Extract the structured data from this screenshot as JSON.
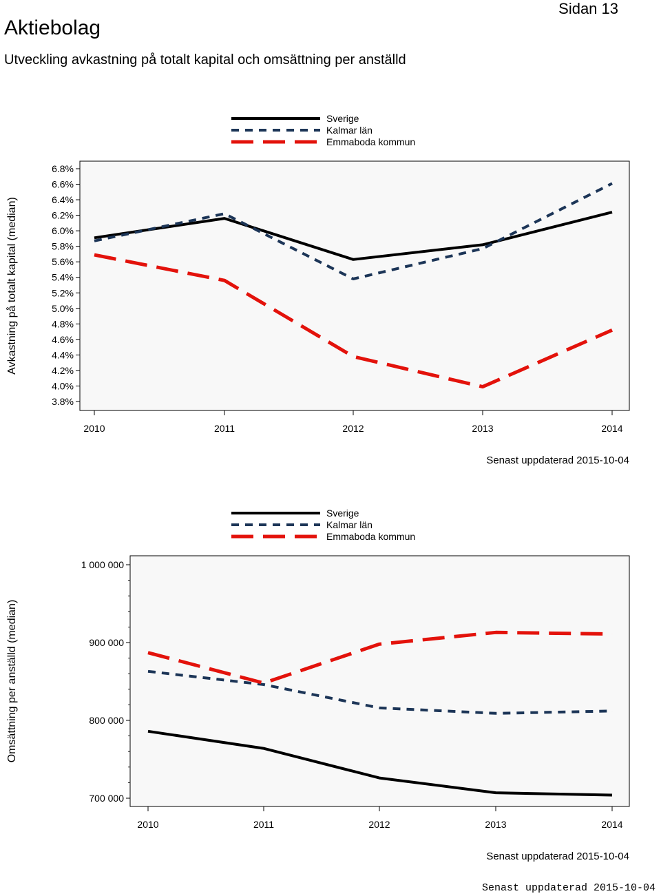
{
  "header": {
    "title": "Aktiebolag",
    "page": "Sidan 13",
    "subtitle": "Utveckling avkastning på totalt kapital och omsättning per anställd"
  },
  "colors": {
    "sverige": "#000000",
    "kalmar": "#1c3557",
    "emmaboda": "#e3120b",
    "plot_bg": "#f8f8f8"
  },
  "footer": {
    "updated": "Senast uppdaterad 2015-10-04"
  },
  "chart_data": [
    {
      "type": "line",
      "title": "",
      "xlabel": "",
      "ylabel": "Avkastning på totalt kapital (median)",
      "categories": [
        "2010",
        "2011",
        "2012",
        "2013",
        "2014"
      ],
      "ylim": [
        3.8,
        6.8
      ],
      "yticks": [
        3.8,
        4.0,
        4.2,
        4.4,
        4.6,
        4.8,
        5.0,
        5.2,
        5.4,
        5.6,
        5.8,
        6.0,
        6.2,
        6.4,
        6.6,
        6.8
      ],
      "ytick_labels": [
        "3.8%",
        "4.0%",
        "4.2%",
        "4.4%",
        "4.6%",
        "4.8%",
        "5.0%",
        "5.2%",
        "5.4%",
        "5.6%",
        "5.8%",
        "6.0%",
        "6.2%",
        "6.4%",
        "6.6%",
        "6.8%"
      ],
      "legend": [
        "Sverige",
        "Kalmar län",
        "Emmaboda kommun"
      ],
      "series": [
        {
          "name": "Sverige",
          "values": [
            5.91,
            6.16,
            5.63,
            5.82,
            6.24
          ]
        },
        {
          "name": "Kalmar län",
          "values": [
            5.87,
            6.22,
            5.38,
            5.77,
            6.61
          ]
        },
        {
          "name": "Emmaboda kommun",
          "values": [
            5.69,
            5.36,
            4.38,
            3.99,
            4.72
          ]
        }
      ],
      "updated": "Senast uppdaterad 2015-10-04"
    },
    {
      "type": "line",
      "title": "",
      "xlabel": "",
      "ylabel": "Omsättning per anställd (median)",
      "categories": [
        "2010",
        "2011",
        "2012",
        "2013",
        "2014"
      ],
      "ylim": [
        700000,
        1000000
      ],
      "yticks": [
        700000,
        800000,
        900000,
        1000000
      ],
      "ytick_labels": [
        "700 000",
        "800 000",
        "900 000",
        "1 000 000"
      ],
      "legend": [
        "Sverige",
        "Kalmar län",
        "Emmaboda kommun"
      ],
      "series": [
        {
          "name": "Sverige",
          "values": [
            786000,
            764000,
            726000,
            707000,
            704000
          ]
        },
        {
          "name": "Kalmar län",
          "values": [
            863000,
            846000,
            816000,
            809000,
            812000
          ]
        },
        {
          "name": "Emmaboda kommun",
          "values": [
            887000,
            848000,
            898000,
            913000,
            911000
          ]
        }
      ],
      "updated": "Senast uppdaterad 2015-10-04"
    }
  ]
}
